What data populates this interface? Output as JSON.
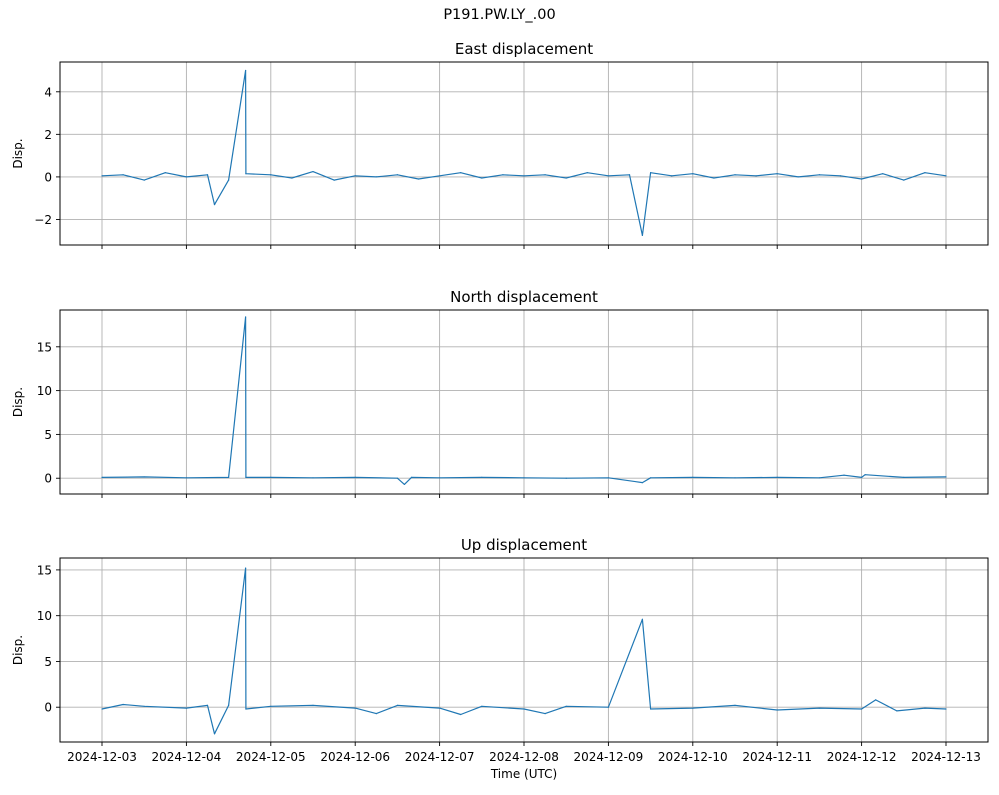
{
  "figure": {
    "suptitle": "P191.PW.LY_.00",
    "line_color": "#1f77b4",
    "grid_color": "#b0b0b0"
  },
  "chart_data": [
    {
      "type": "line",
      "title": "East displacement",
      "xlabel": "",
      "ylabel": "Disp.",
      "x_ticks": [
        "2024-12-03",
        "2024-12-04",
        "2024-12-05",
        "2024-12-06",
        "2024-12-07",
        "2024-12-08",
        "2024-12-09",
        "2024-12-10",
        "2024-12-11",
        "2024-12-12",
        "2024-12-13"
      ],
      "x_tick_labels_visible": false,
      "xlim": [
        "2024-12-03T00:00",
        "2024-12-13T00:00"
      ],
      "ylim": [
        -3.2,
        5.4
      ],
      "y_ticks": [
        -2,
        0,
        2,
        4
      ],
      "grid": true,
      "series": [
        {
          "x": [
            "2024-12-03T00:00",
            "2024-12-03T06:00",
            "2024-12-03T12:00",
            "2024-12-03T18:00",
            "2024-12-04T00:00",
            "2024-12-04T06:00",
            "2024-12-04T08:00",
            "2024-12-04T12:00",
            "2024-12-04T16:50",
            "2024-12-04T16:55",
            "2024-12-05T00:00",
            "2024-12-05T06:00",
            "2024-12-05T12:00",
            "2024-12-05T18:00",
            "2024-12-06T00:00",
            "2024-12-06T06:00",
            "2024-12-06T12:00",
            "2024-12-06T18:00",
            "2024-12-07T00:00",
            "2024-12-07T06:00",
            "2024-12-07T12:00",
            "2024-12-07T18:00",
            "2024-12-08T00:00",
            "2024-12-08T06:00",
            "2024-12-08T12:00",
            "2024-12-08T18:00",
            "2024-12-09T00:00",
            "2024-12-09T06:00",
            "2024-12-09T09:40",
            "2024-12-09T12:00",
            "2024-12-09T18:00",
            "2024-12-10T00:00",
            "2024-12-10T06:00",
            "2024-12-10T12:00",
            "2024-12-10T18:00",
            "2024-12-11T00:00",
            "2024-12-11T06:00",
            "2024-12-11T12:00",
            "2024-12-11T18:00",
            "2024-12-12T00:00",
            "2024-12-12T06:00",
            "2024-12-12T12:00",
            "2024-12-12T18:00",
            "2024-12-13T00:00"
          ],
          "y": [
            0.05,
            0.1,
            -0.15,
            0.2,
            0.0,
            0.1,
            -1.3,
            -0.15,
            5.0,
            0.15,
            0.1,
            -0.05,
            0.25,
            -0.15,
            0.05,
            0.0,
            0.1,
            -0.1,
            0.05,
            0.2,
            -0.05,
            0.1,
            0.05,
            0.1,
            -0.05,
            0.2,
            0.05,
            0.1,
            -2.75,
            0.2,
            0.05,
            0.15,
            -0.05,
            0.1,
            0.05,
            0.15,
            0.0,
            0.1,
            0.05,
            -0.1,
            0.15,
            -0.15,
            0.2,
            0.05
          ]
        }
      ]
    },
    {
      "type": "line",
      "title": "North displacement",
      "xlabel": "",
      "ylabel": "Disp.",
      "x_ticks": [
        "2024-12-03",
        "2024-12-04",
        "2024-12-05",
        "2024-12-06",
        "2024-12-07",
        "2024-12-08",
        "2024-12-09",
        "2024-12-10",
        "2024-12-11",
        "2024-12-12",
        "2024-12-13"
      ],
      "x_tick_labels_visible": false,
      "xlim": [
        "2024-12-03T00:00",
        "2024-12-13T00:00"
      ],
      "ylim": [
        -1.8,
        19.2
      ],
      "y_ticks": [
        0,
        5,
        10,
        15
      ],
      "grid": true,
      "series": [
        {
          "x": [
            "2024-12-03T00:00",
            "2024-12-03T12:00",
            "2024-12-04T00:00",
            "2024-12-04T12:00",
            "2024-12-04T16:50",
            "2024-12-04T16:55",
            "2024-12-05T00:00",
            "2024-12-05T12:00",
            "2024-12-06T00:00",
            "2024-12-06T12:00",
            "2024-12-06T14:00",
            "2024-12-06T16:00",
            "2024-12-07T00:00",
            "2024-12-07T12:00",
            "2024-12-08T00:00",
            "2024-12-08T12:00",
            "2024-12-09T00:00",
            "2024-12-09T09:40",
            "2024-12-09T12:00",
            "2024-12-10T00:00",
            "2024-12-10T12:00",
            "2024-12-11T00:00",
            "2024-12-11T12:00",
            "2024-12-11T19:00",
            "2024-12-12T00:00",
            "2024-12-12T01:00",
            "2024-12-12T12:00",
            "2024-12-13T00:00"
          ],
          "y": [
            0.1,
            0.15,
            0.05,
            0.1,
            18.4,
            0.1,
            0.1,
            0.05,
            0.1,
            0.0,
            -0.7,
            0.1,
            0.05,
            0.1,
            0.05,
            0.0,
            0.05,
            -0.5,
            0.05,
            0.1,
            0.05,
            0.1,
            0.05,
            0.35,
            0.1,
            0.4,
            0.1,
            0.15
          ]
        }
      ]
    },
    {
      "type": "line",
      "title": "Up displacement",
      "xlabel": "Time (UTC)",
      "ylabel": "Disp.",
      "x_ticks": [
        "2024-12-03",
        "2024-12-04",
        "2024-12-05",
        "2024-12-06",
        "2024-12-07",
        "2024-12-08",
        "2024-12-09",
        "2024-12-10",
        "2024-12-11",
        "2024-12-12",
        "2024-12-13"
      ],
      "x_tick_labels_visible": true,
      "xlim": [
        "2024-12-03T00:00",
        "2024-12-13T00:00"
      ],
      "ylim": [
        -3.8,
        16.3
      ],
      "y_ticks": [
        0,
        5,
        10,
        15
      ],
      "grid": true,
      "series": [
        {
          "x": [
            "2024-12-03T00:00",
            "2024-12-03T06:00",
            "2024-12-03T12:00",
            "2024-12-04T00:00",
            "2024-12-04T06:00",
            "2024-12-04T08:00",
            "2024-12-04T12:00",
            "2024-12-04T16:50",
            "2024-12-04T16:55",
            "2024-12-05T00:00",
            "2024-12-05T12:00",
            "2024-12-06T00:00",
            "2024-12-06T06:00",
            "2024-12-06T12:00",
            "2024-12-07T00:00",
            "2024-12-07T06:00",
            "2024-12-07T12:00",
            "2024-12-08T00:00",
            "2024-12-08T06:00",
            "2024-12-08T12:00",
            "2024-12-09T00:00",
            "2024-12-09T09:40",
            "2024-12-09T12:00",
            "2024-12-10T00:00",
            "2024-12-10T12:00",
            "2024-12-11T00:00",
            "2024-12-11T12:00",
            "2024-12-12T00:00",
            "2024-12-12T04:00",
            "2024-12-12T10:00",
            "2024-12-12T18:00",
            "2024-12-13T00:00"
          ],
          "y": [
            -0.2,
            0.3,
            0.1,
            -0.1,
            0.2,
            -2.9,
            0.2,
            15.2,
            -0.2,
            0.1,
            0.2,
            -0.1,
            -0.7,
            0.2,
            -0.1,
            -0.8,
            0.1,
            -0.2,
            -0.7,
            0.1,
            0.0,
            9.6,
            -0.2,
            -0.1,
            0.2,
            -0.3,
            -0.1,
            -0.2,
            0.8,
            -0.4,
            -0.1,
            -0.2
          ]
        }
      ]
    }
  ]
}
